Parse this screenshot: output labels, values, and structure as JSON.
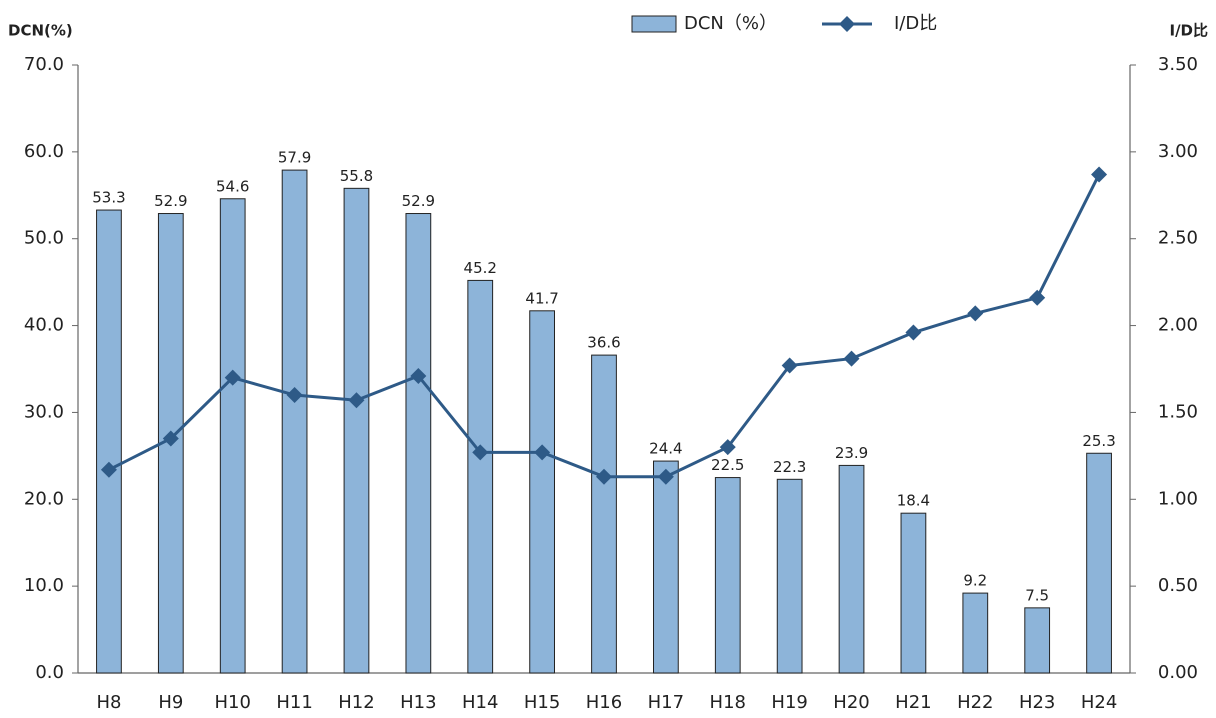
{
  "chart_data": {
    "type": "bar_line",
    "y_label": "DCN(%)",
    "y2_label": "I/D比",
    "categories": [
      "H8",
      "H9",
      "H10",
      "H11",
      "H12",
      "H13",
      "H14",
      "H15",
      "H16",
      "H17",
      "H18",
      "H19",
      "H20",
      "H21",
      "H22",
      "H23",
      "H24"
    ],
    "series": [
      {
        "name": "DCN（%）",
        "type": "bar",
        "color": "#8db4d9",
        "values": [
          53.3,
          52.9,
          54.6,
          57.9,
          55.8,
          52.9,
          45.2,
          41.7,
          36.6,
          24.4,
          22.5,
          22.3,
          23.9,
          18.4,
          9.2,
          7.5,
          25.3
        ]
      },
      {
        "name": "I/D比",
        "type": "line",
        "color": "#2e5a87",
        "axis": "y2",
        "values": [
          1.17,
          1.35,
          1.7,
          1.6,
          1.57,
          1.71,
          1.27,
          1.27,
          1.13,
          1.13,
          1.3,
          1.77,
          1.81,
          1.96,
          2.07,
          2.16,
          2.87
        ]
      }
    ],
    "ylim": [
      0,
      70
    ],
    "yticks": [
      {
        "value": 0,
        "label": "0.0"
      },
      {
        "value": 10,
        "label": "10.0"
      },
      {
        "value": 20,
        "label": "20.0"
      },
      {
        "value": 30,
        "label": "30.0"
      },
      {
        "value": 40,
        "label": "40.0"
      },
      {
        "value": 50,
        "label": "50.0"
      },
      {
        "value": 60,
        "label": "60.0"
      },
      {
        "value": 70,
        "label": "70.0"
      }
    ],
    "y2lim": [
      0,
      3.5
    ],
    "y2ticks": [
      {
        "value": 0,
        "label": "0.00"
      },
      {
        "value": 0.5,
        "label": "0.50"
      },
      {
        "value": 1,
        "label": "1.00"
      },
      {
        "value": 1.5,
        "label": "1.50"
      },
      {
        "value": 2,
        "label": "2.00"
      },
      {
        "value": 2.5,
        "label": "2.50"
      },
      {
        "value": 3,
        "label": "3.00"
      },
      {
        "value": 3.5,
        "label": "3.50"
      }
    ],
    "legend": "top"
  }
}
